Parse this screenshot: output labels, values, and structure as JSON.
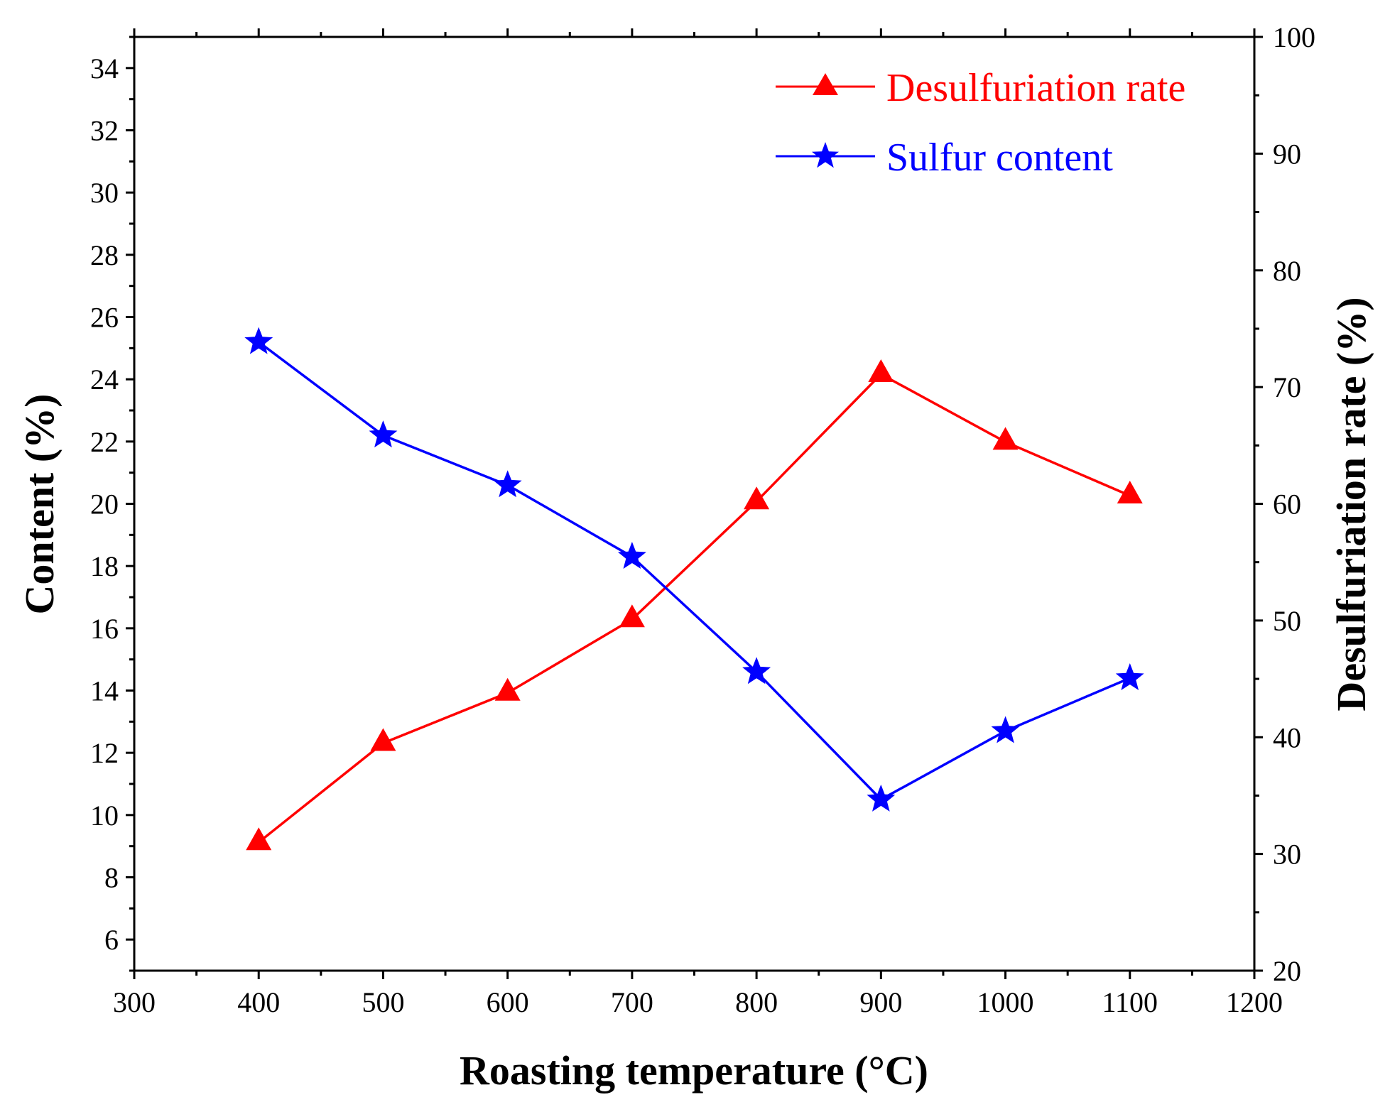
{
  "chart_data": {
    "type": "line",
    "title": "",
    "xlabel": "Roasting temperature (°C)",
    "ylabel_left": "Content (%)",
    "ylabel_right": "Desulfuriation rate (%)",
    "xlim": [
      300,
      1200
    ],
    "ylim_left": [
      5,
      35
    ],
    "ylim_right": [
      20,
      100
    ],
    "x_ticks": [
      "300",
      "400",
      "500",
      "600",
      "700",
      "800",
      "900",
      "1000",
      "1100",
      "1200"
    ],
    "y_left_ticks": [
      "6",
      "8",
      "10",
      "12",
      "14",
      "16",
      "18",
      "20",
      "22",
      "24",
      "26",
      "28",
      "30",
      "32",
      "34"
    ],
    "y_right_ticks": [
      "20",
      "30",
      "40",
      "50",
      "60",
      "70",
      "80",
      "90",
      "100"
    ],
    "x": [
      400,
      500,
      600,
      700,
      800,
      900,
      1000,
      1100
    ],
    "series": [
      {
        "name": "Desulfuriation rate",
        "axis": "right",
        "color": "#ff0000",
        "marker": "triangle",
        "values": [
          31.0,
          39.5,
          43.8,
          50.1,
          60.2,
          71.1,
          65.3,
          60.7
        ]
      },
      {
        "name": "Sulfur content",
        "axis": "left",
        "color": "#0000ff",
        "marker": "star",
        "values": [
          25.2,
          22.2,
          20.6,
          18.3,
          14.6,
          10.5,
          12.7,
          14.4
        ]
      }
    ],
    "legend_position": "top-right",
    "grid": false
  }
}
